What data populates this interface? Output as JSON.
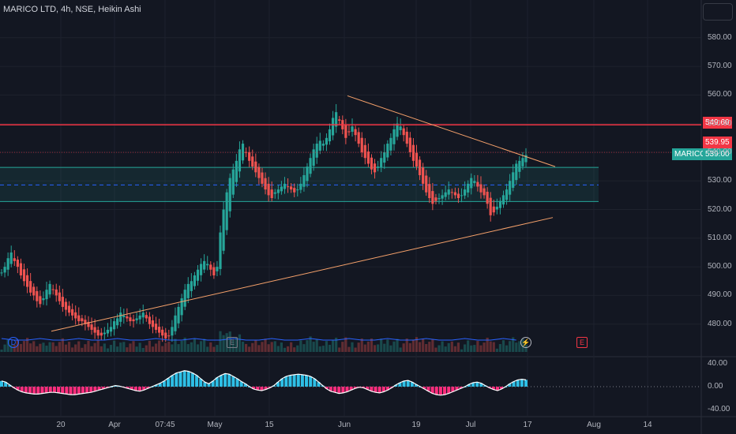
{
  "header": {
    "symbol_title": "MARICO LTD, 4h, NSE, Heikin Ashi"
  },
  "colors": {
    "up": "#26a69a",
    "down": "#ef5350",
    "resistance": "#f23645",
    "trendline": "#f7a26b",
    "zone": "#26a69a",
    "osc_up": "#2ebfe6",
    "osc_down": "#ff2d7d",
    "background": "#131722"
  },
  "price_labels": {
    "resistance": "549.60",
    "last_close": "539.95",
    "ticker": "MARICO",
    "current": "539.00"
  },
  "markers": {
    "dividend": "D",
    "earnings": "E",
    "earnings_future": "E",
    "flash_icon": "lightning-icon"
  },
  "chart_data": {
    "type": "candlestick",
    "title": "MARICO LTD, 4h, NSE, Heikin Ashi",
    "y_axis": {
      "ticks": [
        "580.00",
        "570.00",
        "560.00",
        "550.00",
        "540.00",
        "530.00",
        "520.00",
        "510.00",
        "500.00",
        "490.00",
        "480.00"
      ],
      "ylim": [
        470,
        586
      ]
    },
    "x_axis": {
      "ticks": [
        "20",
        "Apr",
        "07:45",
        "May",
        "15",
        "Jun",
        "19",
        "Jul",
        "17",
        "Aug",
        "14"
      ]
    },
    "levels": {
      "resistance": 549.6,
      "zone_top": 534.7,
      "zone_mid": 528.6,
      "zone_bottom": 522.8
    },
    "trendlines": [
      {
        "name": "",
        "from": 477.5,
        "to": 517.2
      },
      {
        "name": "",
        "from": 559.7,
        "to": 535.0
      }
    ],
    "series": [
      {
        "name": "",
        "values": [
          498,
          500,
          503,
          505,
          502,
          500,
          497,
          495,
          493,
          491,
          490,
          488,
          487,
          489,
          492,
          494,
          492,
          490,
          488,
          486,
          485,
          484,
          483,
          482,
          481,
          481,
          480,
          479,
          478,
          477,
          476,
          476,
          477,
          478,
          479,
          481,
          482,
          484,
          483,
          482,
          481,
          481,
          482,
          483,
          484,
          482,
          480,
          479,
          478,
          477,
          476,
          475,
          476,
          479,
          483,
          486,
          489,
          492,
          494,
          495,
          497,
          499,
          501,
          502,
          501,
          499,
          497,
          500,
          512,
          520,
          526,
          531,
          534,
          537,
          541,
          543,
          540,
          537,
          535,
          533,
          531,
          529,
          527,
          525,
          524,
          526,
          527,
          528,
          529,
          528,
          527,
          526,
          527,
          529,
          532,
          535,
          538,
          541,
          543,
          544,
          543,
          545,
          548,
          552,
          554,
          551,
          548,
          545,
          547,
          549,
          546,
          543,
          540,
          538,
          536,
          534,
          533,
          535,
          538,
          540,
          543,
          545,
          548,
          550,
          549,
          546,
          543,
          540,
          537,
          535,
          532,
          529,
          526,
          524,
          522,
          523,
          524,
          525,
          526,
          527,
          526,
          525,
          524,
          525,
          527,
          529,
          531,
          530,
          528,
          526,
          525,
          522,
          518,
          519,
          521,
          523,
          525,
          527,
          530,
          533,
          536,
          537,
          538,
          539
        ]
      },
      {
        "name": "MACD Histogram",
        "values": [
          10,
          8,
          3,
          -2,
          -6,
          -9,
          -11,
          -12,
          -13,
          -13,
          -12,
          -11,
          -10,
          -10,
          -11,
          -12,
          -13,
          -14,
          -14,
          -13,
          -12,
          -11,
          -10,
          -8,
          -6,
          -4,
          -2,
          0,
          2,
          1,
          -1,
          -3,
          -5,
          -7,
          -8,
          -6,
          -3,
          0,
          3,
          6,
          10,
          15,
          20,
          24,
          26,
          28,
          27,
          24,
          20,
          14,
          8,
          5,
          10,
          16,
          20,
          23,
          22,
          18,
          14,
          9,
          5,
          0,
          -4,
          -6,
          -7,
          -5,
          -2,
          2,
          8,
          14,
          18,
          20,
          21,
          22,
          21,
          20,
          18,
          14,
          8,
          2,
          -4,
          -8,
          -10,
          -12,
          -11,
          -9,
          -6,
          -3,
          -1,
          -2,
          -5,
          -8,
          -10,
          -11,
          -9,
          -6,
          -2,
          3,
          7,
          10,
          11,
          8,
          4,
          0,
          -4,
          -8,
          -12,
          -14,
          -15,
          -14,
          -12,
          -9,
          -6,
          -3,
          0,
          4,
          7,
          8,
          6,
          2,
          -2,
          -5,
          -7,
          -4,
          0,
          5,
          9,
          12,
          13,
          12
        ]
      },
      {
        "name": "MACD",
        "values": [
          10,
          8,
          3,
          -2,
          -6,
          -9,
          -11,
          -12,
          -13,
          -13,
          -12,
          -11,
          -10,
          -10,
          -11,
          -12,
          -13,
          -14,
          -14,
          -13,
          -12,
          -11,
          -10,
          -8,
          -6,
          -4,
          -2,
          0,
          2,
          1,
          -1,
          -3,
          -5,
          -7,
          -8,
          -6,
          -3,
          0,
          3,
          6,
          10,
          15,
          20,
          24,
          26,
          28,
          27,
          24,
          20,
          14,
          8,
          5,
          10,
          16,
          20,
          23,
          22,
          18,
          14,
          9,
          5,
          0,
          -4,
          -6,
          -7,
          -5,
          -2,
          2,
          8,
          14,
          18,
          20,
          21,
          22,
          21,
          20,
          18,
          14,
          8,
          2,
          -4,
          -8,
          -10,
          -12,
          -11,
          -9,
          -6,
          -3,
          -1,
          -2,
          -5,
          -8,
          -10,
          -11,
          -9,
          -6,
          -2,
          3,
          7,
          10,
          11,
          8,
          4,
          0,
          -4,
          -8,
          -12,
          -14,
          -15,
          -14,
          -12,
          -9,
          -6,
          -3,
          0,
          4,
          7,
          8,
          6,
          2,
          -2,
          -5,
          -7,
          -4,
          0,
          5,
          9,
          12,
          13,
          12
        ]
      }
    ],
    "oscillator_axis": {
      "ticks": [
        "40.00",
        "0.00",
        "-40.00"
      ],
      "ylim": [
        -50,
        50
      ]
    },
    "grid": true,
    "legend": "none"
  }
}
